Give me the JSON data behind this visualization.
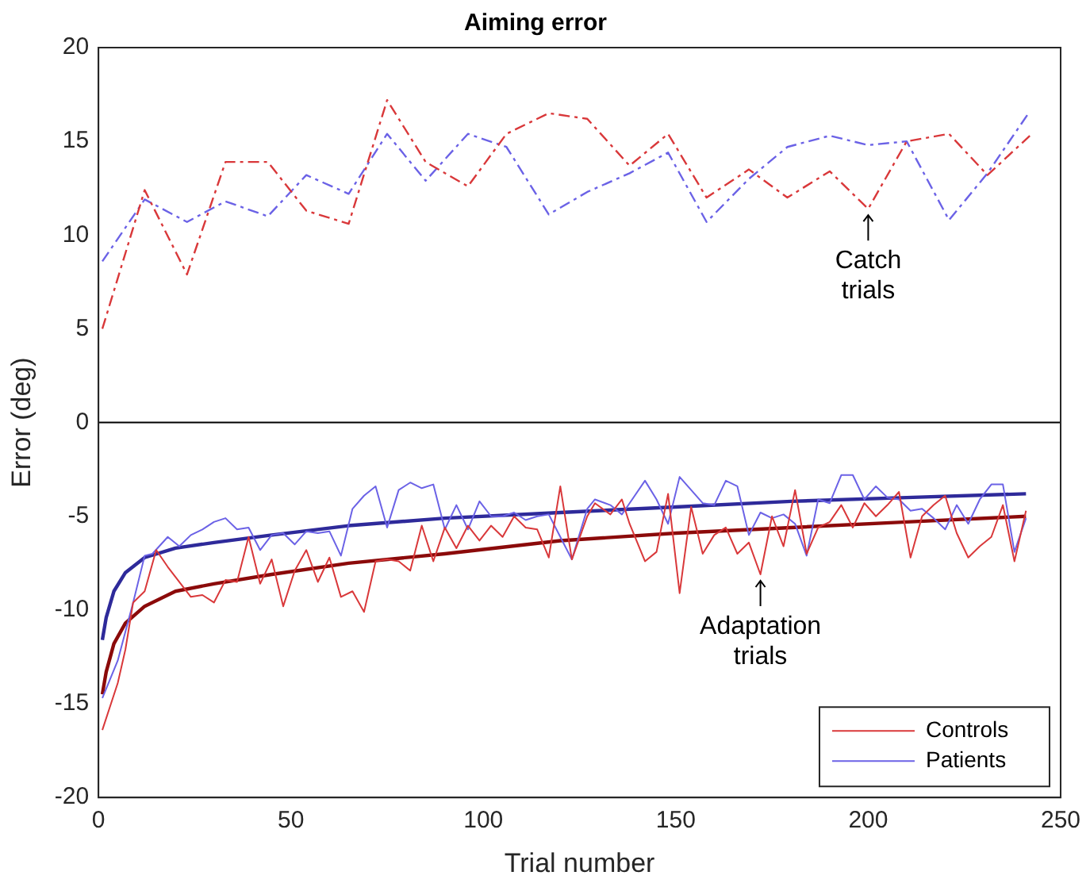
{
  "chart_data": {
    "type": "line",
    "title": "Aiming error",
    "xlabel": "Trial number",
    "ylabel": "Error (deg)",
    "xlim": [
      0,
      250
    ],
    "xticks": [
      0,
      50,
      100,
      150,
      200,
      250
    ],
    "ylim": [
      -20,
      20
    ],
    "yticks": [
      -20,
      -15,
      -10,
      -5,
      0,
      5,
      10,
      15,
      20
    ],
    "grid": false,
    "legend": "bottom right",
    "marker": "none",
    "ref_lines": [
      {
        "axis": "y",
        "value": 0,
        "color": "#000000"
      }
    ],
    "annotations": [
      {
        "text": "Catch\ntrials",
        "x": 200,
        "y": 11.4
      },
      {
        "text": "Adaptation\ntrials",
        "x": 172,
        "y": -8.1
      }
    ],
    "series": [
      {
        "color": "#d9383a",
        "line_style": "dashed",
        "x": [
          1,
          12,
          23,
          33,
          44,
          54,
          65,
          75,
          85,
          96,
          106,
          117,
          127,
          138,
          148,
          158,
          169,
          179,
          190,
          200,
          210,
          221,
          231,
          242
        ],
        "values": [
          5,
          12.4,
          7.9,
          13.9,
          13.9,
          11.3,
          10.6,
          17.2,
          13.9,
          12.6,
          15.4,
          16.5,
          16.2,
          13.7,
          15.4,
          12,
          13.5,
          12,
          13.4,
          11.4,
          15,
          15.4,
          13.2,
          15.3
        ]
      },
      {
        "color": "#6b62e6",
        "line_style": "dashed",
        "x": [
          1,
          12,
          23,
          33,
          44,
          54,
          65,
          75,
          85,
          96,
          106,
          117,
          127,
          138,
          148,
          158,
          169,
          179,
          190,
          200,
          210,
          221,
          231,
          242
        ],
        "values": [
          8.6,
          11.9,
          10.7,
          11.8,
          11,
          13.2,
          12.2,
          15.4,
          12.9,
          15.4,
          14.7,
          11.1,
          12.3,
          13.3,
          14.4,
          10.7,
          13,
          14.7,
          15.3,
          14.8,
          15,
          10.8,
          13.3,
          16.6
        ]
      },
      {
        "name": "Controls",
        "color": "#d9383a",
        "line_style": "solid",
        "x": [
          1,
          5,
          7,
          9,
          12,
          15,
          18,
          24,
          27,
          30,
          33,
          36,
          39,
          42,
          45,
          48,
          51,
          54,
          57,
          60,
          63,
          66,
          69,
          72,
          75,
          78,
          81,
          84,
          87,
          90,
          93,
          96,
          99,
          102,
          105,
          108,
          111,
          114,
          117,
          120,
          123,
          127,
          129,
          133,
          136,
          138,
          142,
          145,
          148,
          151,
          154,
          157,
          160,
          163,
          166,
          169,
          172,
          175,
          178,
          181,
          184,
          187,
          190,
          193,
          196,
          199,
          202,
          205,
          208,
          211,
          214,
          217,
          220,
          223,
          226,
          229,
          232,
          235,
          238,
          241
        ],
        "values": [
          -16.4,
          -13.9,
          -12.1,
          -9.6,
          -9,
          -6.8,
          -7.7,
          -9.3,
          -9.2,
          -9.6,
          -8.4,
          -8.5,
          -6.1,
          -8.6,
          -7.3,
          -9.8,
          -7.9,
          -6.8,
          -8.5,
          -7.2,
          -9.3,
          -9,
          -10.1,
          -7.4,
          -7.3,
          -7.4,
          -7.9,
          -5.5,
          -7.4,
          -5.6,
          -6.7,
          -5.5,
          -6.3,
          -5.5,
          -6.1,
          -5,
          -5.6,
          -5.7,
          -7.2,
          -3.4,
          -7.3,
          -5,
          -4.3,
          -4.9,
          -4.1,
          -5.4,
          -7.4,
          -6.9,
          -3.8,
          -9.1,
          -4.5,
          -7,
          -6,
          -5.6,
          -7,
          -6.4,
          -8.1,
          -5,
          -6.6,
          -3.6,
          -7,
          -5.6,
          -5.3,
          -4.4,
          -5.6,
          -4.3,
          -5,
          -4.4,
          -3.7,
          -7.2,
          -5,
          -4.4,
          -3.9,
          -5.9,
          -7.2,
          -6.6,
          -6.1,
          -4.4,
          -7.4,
          -4.7
        ]
      },
      {
        "name": "Patients",
        "color": "#6b62e6",
        "line_style": "solid",
        "x": [
          1,
          5,
          9,
          12,
          14,
          18,
          21,
          24,
          27,
          30,
          33,
          36,
          39,
          42,
          45,
          48,
          51,
          54,
          57,
          60,
          63,
          66,
          69,
          72,
          75,
          78,
          81,
          84,
          87,
          90,
          93,
          96,
          99,
          102,
          105,
          108,
          111,
          114,
          117,
          120,
          123,
          127,
          129,
          133,
          136,
          138,
          142,
          145,
          148,
          151,
          154,
          157,
          160,
          163,
          166,
          169,
          172,
          175,
          178,
          181,
          184,
          187,
          190,
          193,
          196,
          199,
          202,
          205,
          208,
          211,
          214,
          217,
          220,
          223,
          226,
          229,
          232,
          235,
          238,
          241
        ],
        "values": [
          -14.7,
          -12.7,
          -9.6,
          -7.1,
          -7,
          -6.1,
          -6.6,
          -6,
          -5.7,
          -5.3,
          -5.1,
          -5.7,
          -5.6,
          -6.8,
          -6,
          -5.9,
          -6.5,
          -5.8,
          -5.9,
          -5.8,
          -7.1,
          -4.6,
          -3.9,
          -3.4,
          -5.6,
          -3.6,
          -3.2,
          -3.5,
          -3.3,
          -5.7,
          -4.4,
          -5.7,
          -4.2,
          -5,
          -5,
          -4.8,
          -5.2,
          -5,
          -4.9,
          -6.1,
          -7.3,
          -4.6,
          -4.1,
          -4.4,
          -4.9,
          -4.3,
          -3.1,
          -4.1,
          -5.4,
          -2.9,
          -3.6,
          -4.3,
          -4.4,
          -3.1,
          -3.4,
          -6,
          -4.8,
          -5.1,
          -4.9,
          -5.4,
          -7.1,
          -4.1,
          -4.3,
          -2.8,
          -2.8,
          -4.1,
          -3.4,
          -4,
          -4.1,
          -4.7,
          -4.6,
          -5.1,
          -5.7,
          -4.4,
          -5.4,
          -4.1,
          -3.3,
          -3.3,
          -6.9,
          -5.1
        ]
      },
      {
        "color": "#8b0a0a",
        "line_style": "solid",
        "x": [
          1,
          2,
          4,
          7,
          12,
          20,
          30,
          45,
          65,
          90,
          120,
          150,
          180,
          210,
          241
        ],
        "values": [
          -14.5,
          -13.3,
          -11.8,
          -10.7,
          -9.8,
          -9,
          -8.6,
          -8.1,
          -7.5,
          -7,
          -6.3,
          -5.9,
          -5.6,
          -5.3,
          -5
        ]
      },
      {
        "color": "#2e2a9a",
        "line_style": "solid",
        "x": [
          1,
          2,
          4,
          7,
          12,
          20,
          30,
          45,
          65,
          90,
          120,
          150,
          180,
          210,
          241
        ],
        "values": [
          -11.6,
          -10.4,
          -9,
          -8,
          -7.2,
          -6.7,
          -6.4,
          -6,
          -5.5,
          -5.1,
          -4.8,
          -4.5,
          -4.2,
          -4,
          -3.8
        ]
      }
    ]
  }
}
